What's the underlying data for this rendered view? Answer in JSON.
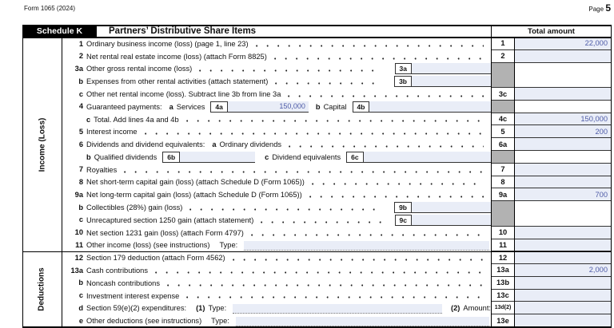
{
  "page": {
    "form_id": "Form 1065 (2024)",
    "page_word": "Page",
    "page_num": "5"
  },
  "header": {
    "schedule": "Schedule K",
    "title": "Partners’ Distributive Share Items",
    "total_amount": "Total amount"
  },
  "sidebar": {
    "income": "Income (Loss)",
    "deductions": "Deductions"
  },
  "colors": {
    "field_fill": "#e9edf7",
    "value_text": "#4f5ca8",
    "shaded_cell": "#b2b2b2",
    "header_bg": "#000000"
  },
  "rows": [
    {
      "num": "1",
      "right": {
        "num": "1",
        "amount": "22,000"
      },
      "segments": [
        {
          "type": "text",
          "text": "Ordinary business income (loss) (page 1, line 23)"
        },
        {
          "type": "dots"
        }
      ]
    },
    {
      "num": "2",
      "right": {
        "num": "2",
        "amount": ""
      },
      "segments": [
        {
          "type": "text",
          "text": "Net rental real estate income (loss) (attach Form 8825)"
        },
        {
          "type": "dots"
        }
      ]
    },
    {
      "num": "3a",
      "right": {
        "gray": true,
        "span": 2
      },
      "segments": [
        {
          "type": "text",
          "text": "Other gross rental income (loss)"
        },
        {
          "type": "dots"
        },
        {
          "type": "box",
          "label": "3a",
          "value": "",
          "fillw": 95
        }
      ]
    },
    {
      "num": "b",
      "segments": [
        {
          "type": "text",
          "text": "Expenses from other rental activities (attach statement)"
        },
        {
          "type": "dots"
        },
        {
          "type": "box",
          "label": "3b",
          "value": "",
          "fillw": 95
        }
      ]
    },
    {
      "num": "c",
      "right": {
        "num": "3c",
        "amount": ""
      },
      "segments": [
        {
          "type": "text",
          "text": "Other net rental income (loss). Subtract line 3b from line 3a"
        },
        {
          "type": "dots"
        }
      ]
    },
    {
      "num": "4",
      "right": {
        "gray": true,
        "span": 1
      },
      "segments": [
        {
          "type": "text",
          "text": "Guaranteed payments:"
        },
        {
          "type": "bold",
          "text": "a"
        },
        {
          "type": "text",
          "text": "Services"
        },
        {
          "type": "box",
          "label": "4a",
          "value": "150,000",
          "fillw": 97
        },
        {
          "type": "bold",
          "text": "b"
        },
        {
          "type": "text",
          "text": "Capital"
        },
        {
          "type": "box",
          "label": "4b",
          "value": "",
          "grow": true
        }
      ]
    },
    {
      "num": "",
      "right": {
        "num": "4c",
        "amount": "150,000"
      },
      "segments": [
        {
          "type": "bold",
          "text": "c",
          "first": true
        },
        {
          "type": "text",
          "text": "Total. Add lines 4a and 4b"
        },
        {
          "type": "dots"
        }
      ]
    },
    {
      "num": "5",
      "right": {
        "num": "5",
        "amount": "200"
      },
      "segments": [
        {
          "type": "text",
          "text": "Interest income"
        },
        {
          "type": "dots"
        }
      ]
    },
    {
      "num": "6",
      "right": {
        "num": "6a",
        "amount": ""
      },
      "segments": [
        {
          "type": "text",
          "text": "Dividends and dividend equivalents:"
        },
        {
          "type": "bold",
          "text": "a"
        },
        {
          "type": "text",
          "text": "Ordinary dividends"
        },
        {
          "type": "dots"
        }
      ]
    },
    {
      "num": "",
      "right": {
        "gray": true,
        "span": 1
      },
      "segments": [
        {
          "type": "bold",
          "text": "b",
          "first": true
        },
        {
          "type": "text",
          "text": "Qualified dividends"
        },
        {
          "type": "box",
          "label": "6b",
          "value": "",
          "fillw": 90
        },
        {
          "type": "bold",
          "text": "c",
          "gap": true
        },
        {
          "type": "text",
          "text": "Dividend equivalents"
        },
        {
          "type": "box",
          "label": "6c",
          "value": "",
          "grow": true
        }
      ]
    },
    {
      "num": "7",
      "right": {
        "num": "7",
        "amount": ""
      },
      "segments": [
        {
          "type": "text",
          "text": "Royalties"
        },
        {
          "type": "dots"
        }
      ]
    },
    {
      "num": "8",
      "right": {
        "num": "8",
        "amount": ""
      },
      "segments": [
        {
          "type": "text",
          "text": "Net short-term capital gain (loss) (attach Schedule D (Form 1065))"
        },
        {
          "type": "dots"
        }
      ]
    },
    {
      "num": "9a",
      "right": {
        "num": "9a",
        "amount": "700"
      },
      "segments": [
        {
          "type": "text",
          "text": "Net long-term capital gain (loss) (attach Schedule D (Form 1065))"
        },
        {
          "type": "dots"
        }
      ]
    },
    {
      "num": "b",
      "right": {
        "gray": true,
        "span": 2
      },
      "segments": [
        {
          "type": "text",
          "text": "Collectibles (28%) gain (loss)"
        },
        {
          "type": "dots"
        },
        {
          "type": "box",
          "label": "9b",
          "value": "",
          "fillw": 95
        }
      ]
    },
    {
      "num": "c",
      "segments": [
        {
          "type": "text",
          "text": "Unrecaptured section 1250 gain (attach statement)"
        },
        {
          "type": "dots"
        },
        {
          "type": "box",
          "label": "9c",
          "value": "",
          "fillw": 95
        }
      ]
    },
    {
      "num": "10",
      "right": {
        "num": "10",
        "amount": ""
      },
      "segments": [
        {
          "type": "text",
          "text": "Net section 1231 gain (loss) (attach Form 4797)"
        },
        {
          "type": "dots"
        }
      ]
    },
    {
      "num": "11",
      "right": {
        "num": "11",
        "amount": ""
      },
      "segments": [
        {
          "type": "text",
          "text": "Other income (loss) (see instructions)"
        },
        {
          "type": "text",
          "text": "Type:",
          "gap": true
        },
        {
          "type": "dash"
        }
      ]
    },
    {
      "num": "12",
      "section_start": true,
      "right": {
        "num": "12",
        "amount": ""
      },
      "segments": [
        {
          "type": "text",
          "text": "Section 179 deduction (attach Form 4562)"
        },
        {
          "type": "dots"
        }
      ]
    },
    {
      "num": "13a",
      "right": {
        "num": "13a",
        "amount": "2,000"
      },
      "segments": [
        {
          "type": "text",
          "text": "Cash contributions"
        },
        {
          "type": "dots"
        }
      ]
    },
    {
      "num": "b",
      "right": {
        "num": "13b",
        "amount": ""
      },
      "segments": [
        {
          "type": "text",
          "text": "Noncash contributions"
        },
        {
          "type": "dots"
        }
      ]
    },
    {
      "num": "c",
      "right": {
        "num": "13c",
        "amount": ""
      },
      "segments": [
        {
          "type": "text",
          "text": "Investment interest expense"
        },
        {
          "type": "dots"
        }
      ]
    },
    {
      "num": "d",
      "right": {
        "num": "13d(2)",
        "small": true,
        "amount": ""
      },
      "segments": [
        {
          "type": "text",
          "text": "Section 59(e)(2) expenditures:"
        },
        {
          "type": "bold",
          "text": "(1)",
          "gap": true
        },
        {
          "type": "text",
          "text": "Type:"
        },
        {
          "type": "dash"
        },
        {
          "type": "bold",
          "text": "(2)"
        },
        {
          "type": "text",
          "text": "Amount:"
        }
      ]
    },
    {
      "num": "e",
      "right": {
        "num": "13e",
        "amount": ""
      },
      "segments": [
        {
          "type": "text",
          "text": "Other deductions (see instructions)"
        },
        {
          "type": "text",
          "text": "Type:",
          "gap": true
        },
        {
          "type": "dash"
        }
      ]
    }
  ]
}
